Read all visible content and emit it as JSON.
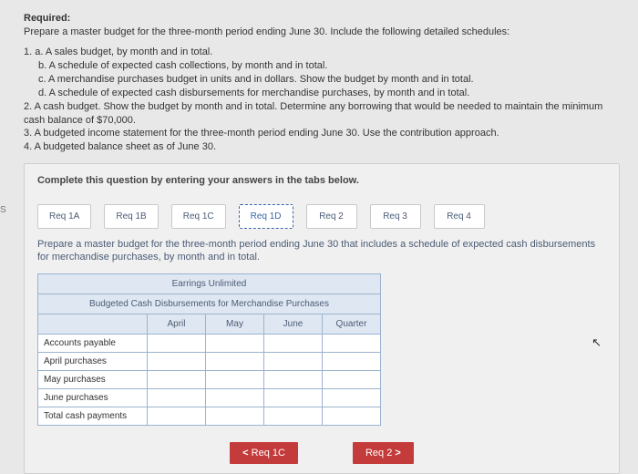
{
  "header": {
    "required_label": "Required:",
    "intro": "Prepare a master budget for the three-month period ending June 30. Include the following detailed schedules:"
  },
  "list": {
    "l1a": "1. a. A sales budget, by month and in total.",
    "l1b": "b. A schedule of expected cash collections, by month and in total.",
    "l1c": "c. A merchandise purchases budget in units and in dollars. Show the budget by month and in total.",
    "l1d": "d. A schedule of expected cash disbursements for merchandise purchases, by month and in total.",
    "l2": "2. A cash budget. Show the budget by month and in total. Determine any borrowing that would be needed to maintain the minimum cash balance of $70,000.",
    "l3": "3. A budgeted income statement for the three-month period ending June 30. Use the contribution approach.",
    "l4": "4. A budgeted balance sheet as of June 30."
  },
  "qbox": {
    "head": "Complete this question by entering your answers in the tabs below.",
    "tabs": [
      "Req 1A",
      "Req 1B",
      "Req 1C",
      "Req 1D",
      "Req 2",
      "Req 3",
      "Req 4"
    ],
    "active_tab_index": 3,
    "sub_instr": "Prepare a master budget for the three-month period ending June 30 that includes a schedule of expected cash disbursements for merchandise purchases, by month and in total."
  },
  "table": {
    "title1": "Earrings Unlimited",
    "title2": "Budgeted Cash Disbursements for Merchandise Purchases",
    "cols": [
      "April",
      "May",
      "June",
      "Quarter"
    ],
    "rows": [
      "Accounts payable",
      "April purchases",
      "May purchases",
      "June purchases",
      "Total cash payments"
    ]
  },
  "nav": {
    "prev": "Req 1C",
    "next": "Req 2"
  },
  "side": "S"
}
